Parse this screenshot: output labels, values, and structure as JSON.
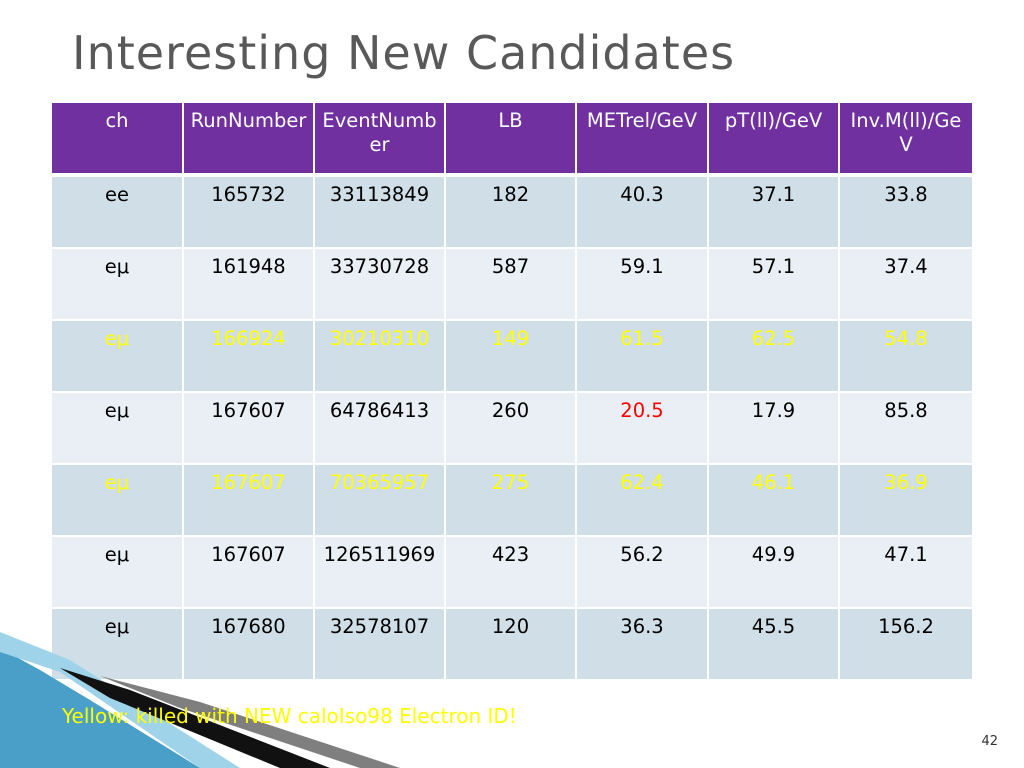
{
  "slide": {
    "title": "Interesting New Candidates",
    "footnote": "Yellow: killed with NEW caloIso98 Electron ID!",
    "page_number": "42"
  },
  "colors": {
    "header_bg": "#7030a0",
    "row_dark": "#d0dfe7",
    "row_light": "#e9eff4",
    "highlight_yellow": "#ffff00",
    "highlight_red": "#ff0000",
    "title_gray": "#595959"
  },
  "table": {
    "headers": [
      "ch",
      "RunNumber",
      "EventNumber",
      "LB",
      "METrel/GeV",
      "pT(ll)/GeV",
      "Inv.M(ll)/GeV"
    ],
    "rows": [
      {
        "ch": "ee",
        "run": "165732",
        "event": "33113849",
        "lb": "182",
        "metrel": "40.3",
        "ptll": "37.1",
        "invm": "33.8",
        "killed": false,
        "metrel_red": false
      },
      {
        "ch": "eμ",
        "run": "161948",
        "event": "33730728",
        "lb": "587",
        "metrel": "59.1",
        "ptll": "57.1",
        "invm": "37.4",
        "killed": false,
        "metrel_red": false
      },
      {
        "ch": "eμ",
        "run": "166924",
        "event": "30210310",
        "lb": "149",
        "metrel": "61.5",
        "ptll": "62.5",
        "invm": "54.8",
        "killed": true,
        "metrel_red": false
      },
      {
        "ch": "eμ",
        "run": "167607",
        "event": "64786413",
        "lb": "260",
        "metrel": "20.5",
        "ptll": "17.9",
        "invm": "85.8",
        "killed": false,
        "metrel_red": true
      },
      {
        "ch": "eμ",
        "run": "167607",
        "event": "70365957",
        "lb": "275",
        "metrel": "62.4",
        "ptll": "46.1",
        "invm": "36.9",
        "killed": true,
        "metrel_red": false
      },
      {
        "ch": "eμ",
        "run": "167607",
        "event": "126511969",
        "lb": "423",
        "metrel": "56.2",
        "ptll": "49.9",
        "invm": "47.1",
        "killed": false,
        "metrel_red": false
      },
      {
        "ch": "eμ",
        "run": "167680",
        "event": "32578107",
        "lb": "120",
        "metrel": "36.3",
        "ptll": "45.5",
        "invm": "156.2",
        "killed": false,
        "metrel_red": false
      }
    ]
  }
}
